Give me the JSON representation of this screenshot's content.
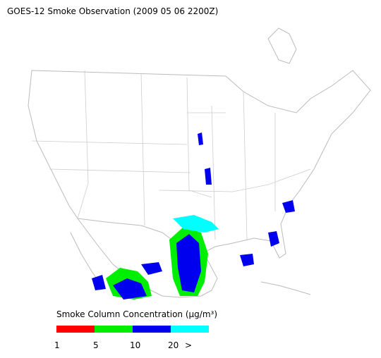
{
  "header": {
    "title": "GOES-12 Smoke Observation (2009 05 06  2200Z)"
  },
  "legend": {
    "label": "Smoke Column Concentration (μg/m³)",
    "colors": [
      "#ff0000",
      "#00ee00",
      "#0000ee",
      "#00ffff"
    ],
    "labels": [
      "1",
      "5",
      "10",
      "20",
      ">"
    ]
  }
}
